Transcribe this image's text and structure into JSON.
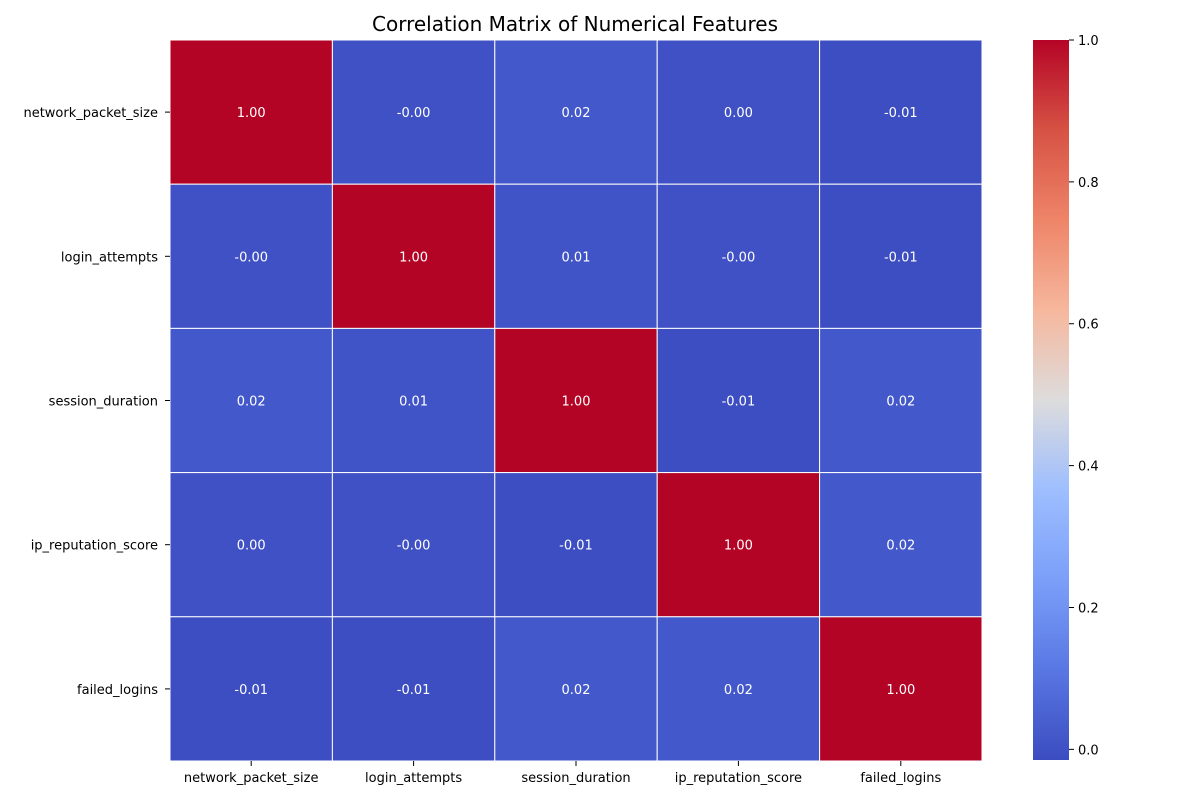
{
  "chart_data": {
    "type": "heatmap",
    "title": "Correlation Matrix of Numerical Features",
    "xlabel": "",
    "ylabel": "",
    "x_categories": [
      "network_packet_size",
      "login_attempts",
      "session_duration",
      "ip_reputation_score",
      "failed_logins"
    ],
    "y_categories": [
      "network_packet_size",
      "login_attempts",
      "session_duration",
      "ip_reputation_score",
      "failed_logins"
    ],
    "values": [
      [
        1.0,
        -0.0,
        0.02,
        0.0,
        -0.01
      ],
      [
        -0.0,
        1.0,
        0.01,
        -0.0,
        -0.01
      ],
      [
        0.02,
        0.01,
        1.0,
        -0.01,
        0.02
      ],
      [
        0.0,
        -0.0,
        -0.01,
        1.0,
        0.02
      ],
      [
        -0.01,
        -0.01,
        0.02,
        0.02,
        1.0
      ]
    ],
    "labels": [
      [
        "1.00",
        "-0.00",
        "0.02",
        "0.00",
        "-0.01"
      ],
      [
        "-0.00",
        "1.00",
        "0.01",
        "-0.00",
        "-0.01"
      ],
      [
        "0.02",
        "0.01",
        "1.00",
        "-0.01",
        "0.02"
      ],
      [
        "0.00",
        "-0.00",
        "-0.01",
        "1.00",
        "0.02"
      ],
      [
        "-0.01",
        "-0.01",
        "0.02",
        "0.02",
        "1.00"
      ]
    ],
    "colormap": "coolwarm",
    "colorbar": {
      "range": [
        -0.015,
        1.0
      ],
      "ticks": [
        0.0,
        0.2,
        0.4,
        0.6,
        0.8,
        1.0
      ],
      "tick_labels": [
        "0.0",
        "0.2",
        "0.4",
        "0.6",
        "0.8",
        "1.0"
      ],
      "position": "right"
    },
    "grid": false
  }
}
